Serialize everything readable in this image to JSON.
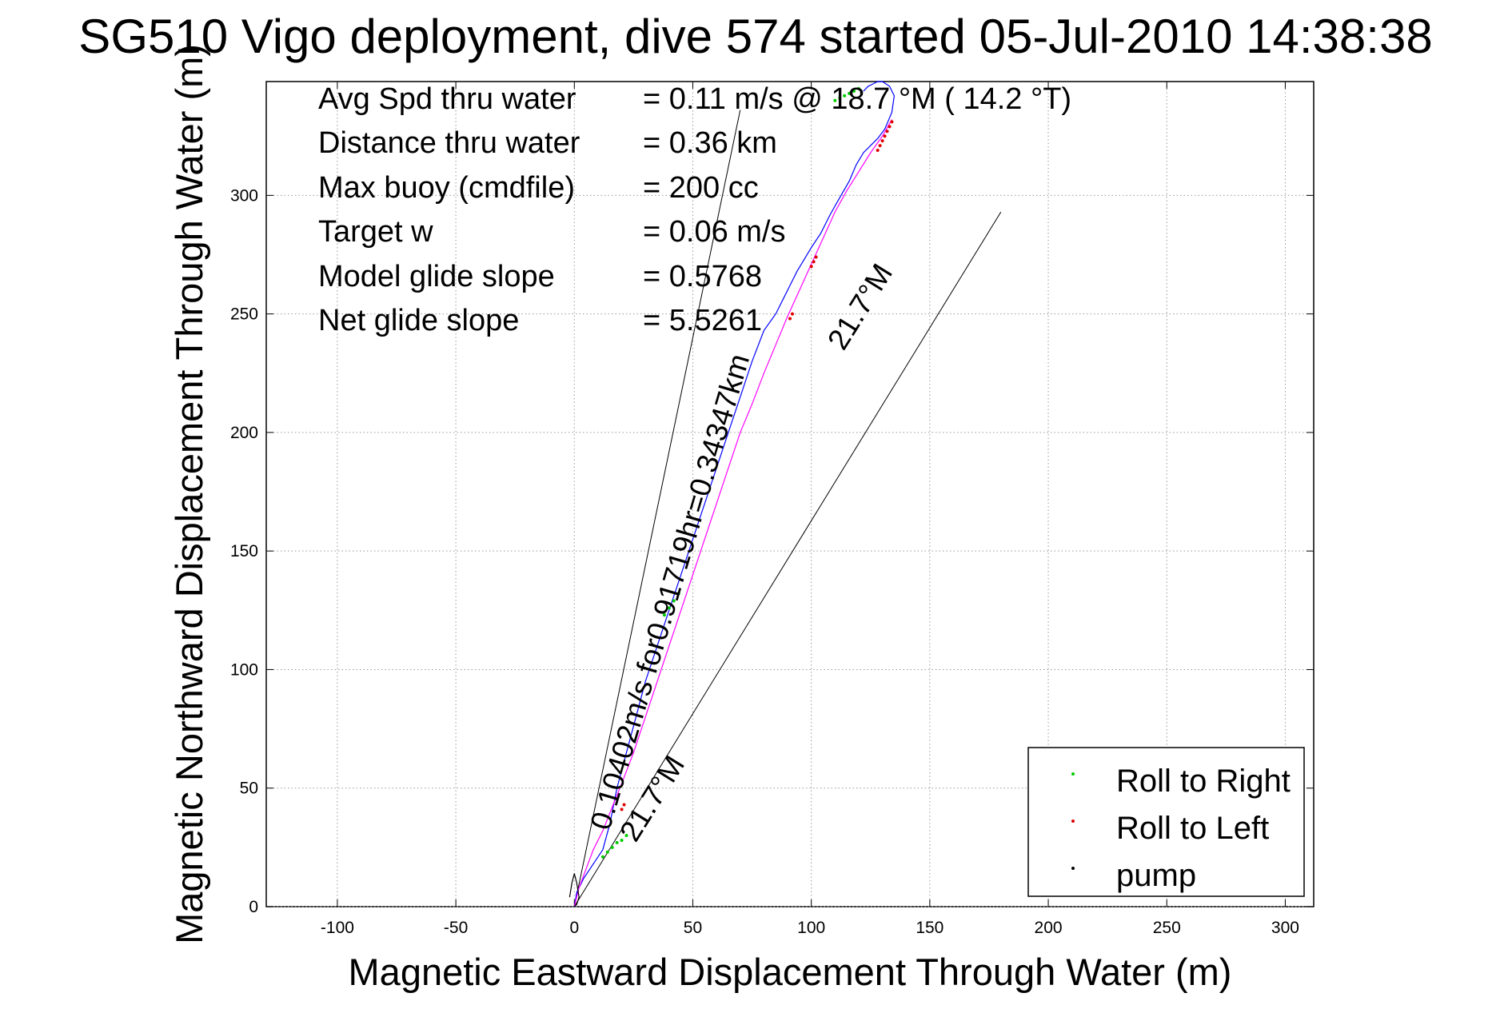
{
  "chart_data": {
    "type": "line",
    "title": "SG510 Vigo deployment, dive 574 started 05-Jul-2010 14:38:38",
    "xlabel": "Magnetic Eastward Displacement Through Water (m)",
    "ylabel": "Magnetic Northward Displacement Through Water (m)",
    "xlim": [
      -130,
      312
    ],
    "ylim": [
      0,
      348
    ],
    "xticks": [
      -100,
      -50,
      0,
      50,
      100,
      150,
      200,
      250,
      300
    ],
    "yticks": [
      0,
      50,
      100,
      150,
      200,
      250,
      300
    ],
    "xtick_labels": [
      "-100",
      "-50",
      "0",
      "50",
      "100",
      "150",
      "200",
      "250",
      "300"
    ],
    "ytick_labels": [
      "0",
      "50",
      "100",
      "150",
      "200",
      "250",
      "300"
    ],
    "grid": true,
    "legend_placement": "bottom-right",
    "stats": [
      {
        "label": "Avg Spd thru water",
        "value": "=  0.11 m/s @  18.7 °M ( 14.2 °T)"
      },
      {
        "label": "Distance thru water",
        "value": "=  0.36 km"
      },
      {
        "label": "Max buoy (cmdfile)",
        "value": "= 200 cc"
      },
      {
        "label": "Target w",
        "value": "= 0.06 m/s"
      },
      {
        "label": "Model glide slope",
        "value": "= 0.5768"
      },
      {
        "label": "Net glide slope",
        "value": "= 5.5261"
      }
    ],
    "annotations": {
      "course_label": "0.10402m/s for0.91719hr=0.34347km",
      "angle_label_lower": "21.7°M",
      "angle_label_upper": "21.7°M"
    },
    "legend": [
      {
        "label": "Roll to Right",
        "color": "#00cc00"
      },
      {
        "label": "Roll to Left",
        "color": "#e00000"
      },
      {
        "label": "pump",
        "color": "#000000"
      }
    ],
    "series": [
      {
        "color": "#0000ff",
        "x": [
          0,
          1,
          4,
          8,
          12,
          15,
          18,
          22,
          26,
          30,
          35,
          40,
          45,
          50,
          55,
          60,
          65,
          70,
          75,
          80,
          85,
          88,
          91,
          94,
          97,
          100,
          104,
          108,
          112,
          116,
          119,
          122,
          125,
          128,
          131,
          134,
          135,
          133,
          130,
          128,
          126,
          124,
          122
        ],
        "y": [
          0,
          6,
          12,
          18,
          24,
          35,
          50,
          65,
          80,
          95,
          110,
          125,
          140,
          155,
          170,
          185,
          200,
          215,
          230,
          243,
          250,
          256,
          262,
          268,
          273,
          278,
          284,
          292,
          299,
          306,
          313,
          318,
          321,
          324,
          328,
          335,
          342,
          346,
          348,
          348,
          347,
          346,
          344
        ]
      },
      {
        "color": "#ff00ff",
        "x": [
          0,
          2,
          5,
          8,
          12,
          16,
          20,
          25,
          30,
          35,
          40,
          45,
          50,
          55,
          60,
          65,
          70,
          75,
          80,
          85,
          90,
          95,
          100,
          105,
          110,
          115,
          120,
          125,
          130,
          134
        ],
        "y": [
          0,
          8,
          16,
          24,
          32,
          42,
          52,
          65,
          80,
          95,
          110,
          125,
          140,
          155,
          170,
          185,
          200,
          212,
          225,
          237,
          249,
          260,
          271,
          282,
          293,
          302,
          310,
          318,
          325,
          332
        ]
      },
      {
        "color": "#000000",
        "x": [
          -2,
          -1,
          0,
          1,
          2,
          1,
          0
        ],
        "y": [
          4,
          10,
          14,
          10,
          4,
          1,
          0
        ]
      }
    ],
    "reference_lines": [
      {
        "x": [
          0,
          70
        ],
        "y": [
          0,
          336
        ]
      },
      {
        "x": [
          0,
          180
        ],
        "y": [
          0,
          293
        ]
      }
    ],
    "markers": [
      {
        "series": "Roll to Right",
        "color": "#00cc00",
        "x": [
          12,
          14,
          16,
          18,
          20,
          22,
          110,
          112,
          114,
          116,
          118,
          120,
          38,
          40,
          42,
          44
        ],
        "y": [
          21,
          23,
          25,
          27,
          28,
          30,
          340,
          341,
          342,
          343,
          344,
          345,
          123,
          126,
          129,
          132
        ]
      },
      {
        "series": "Roll to Left",
        "color": "#e00000",
        "x": [
          128,
          129,
          130,
          131,
          132,
          133,
          134,
          100,
          101,
          102,
          91,
          92,
          20,
          21
        ],
        "y": [
          319,
          321,
          323,
          325,
          327,
          329,
          331,
          270,
          272,
          274,
          248,
          250,
          41,
          43
        ]
      }
    ]
  }
}
